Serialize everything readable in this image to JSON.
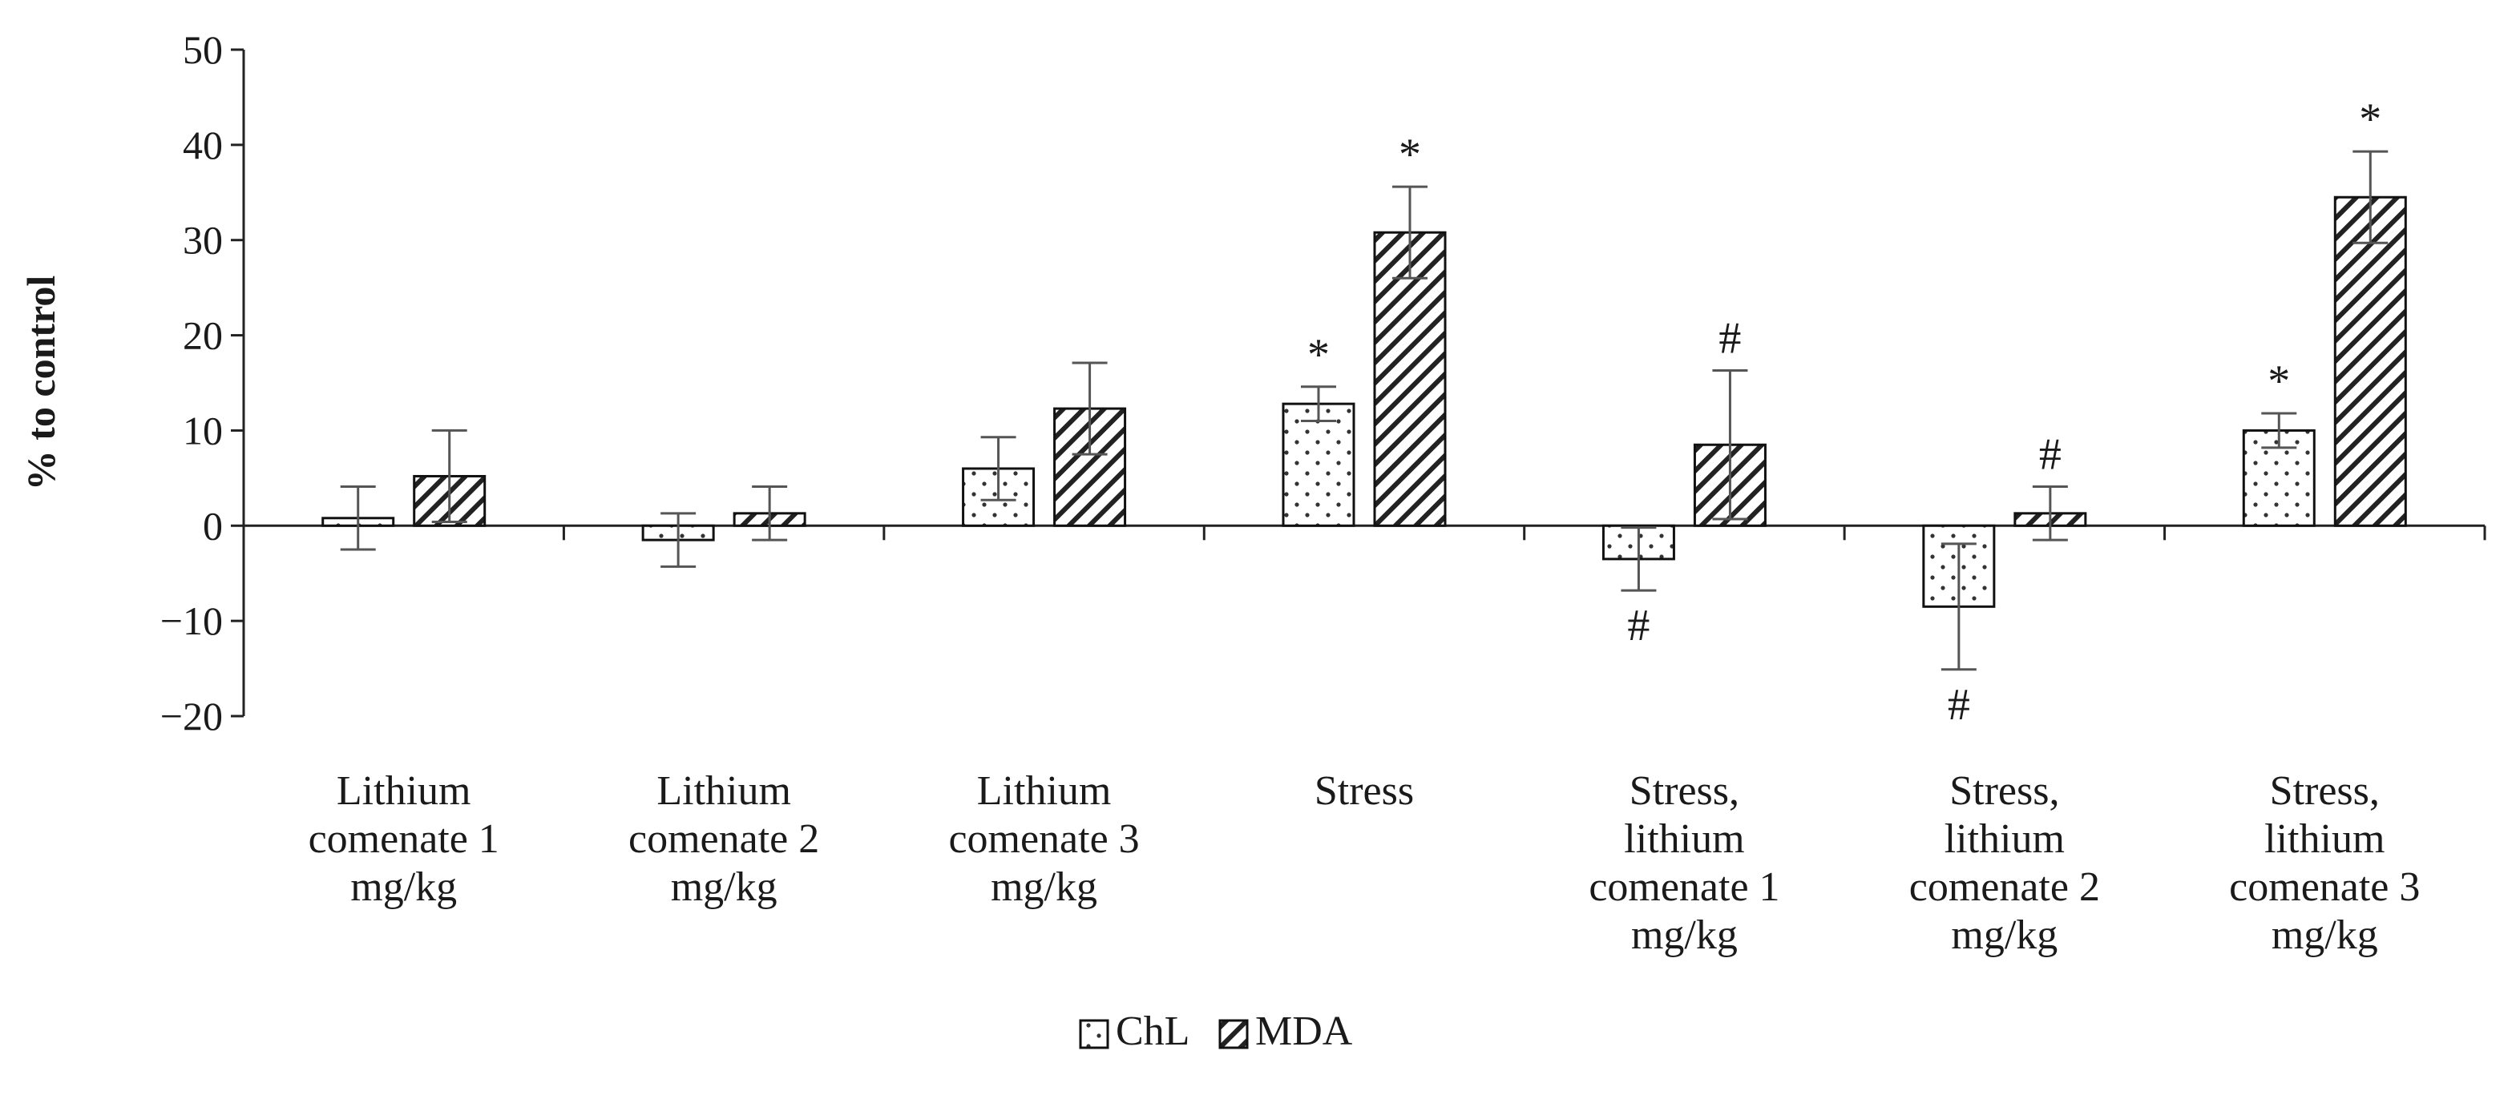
{
  "chart_data": {
    "type": "bar",
    "title": "",
    "xlabel": "",
    "ylabel": "% to control",
    "ylim": [
      -20,
      50
    ],
    "yticks": [
      50,
      40,
      30,
      20,
      10,
      0,
      -10,
      -20
    ],
    "ytick_labels": [
      "50",
      "40",
      "30",
      "20",
      "10",
      "0",
      "−10",
      "−20"
    ],
    "grid": false,
    "legend_position": "bottom-center",
    "categories": [
      [
        "Lithium",
        "comenate 1",
        "mg/kg"
      ],
      [
        "Lithium",
        "comenate 2",
        "mg/kg"
      ],
      [
        "Lithium",
        "comenate 3",
        "mg/kg"
      ],
      [
        "Stress"
      ],
      [
        "Stress,",
        "lithium",
        "comenate 1",
        "mg/kg"
      ],
      [
        "Stress,",
        "lithium",
        "comenate 2",
        "mg/kg"
      ],
      [
        "Stress,",
        "lithium",
        "comenate 3",
        "mg/kg"
      ]
    ],
    "series": [
      {
        "name": "ChL",
        "pattern": "dots",
        "values": [
          0.8,
          -1.5,
          6.0,
          12.8,
          -3.5,
          -8.5,
          10.0
        ],
        "errors": [
          3.3,
          2.8,
          3.3,
          1.8,
          3.3,
          6.6,
          1.8
        ],
        "annotations": [
          "",
          "",
          "",
          "*",
          "#",
          "#",
          "*"
        ]
      },
      {
        "name": "MDA",
        "pattern": "hatch",
        "values": [
          5.2,
          1.3,
          12.3,
          30.8,
          8.5,
          1.3,
          34.5
        ],
        "errors": [
          4.8,
          2.8,
          4.8,
          4.8,
          7.8,
          2.8,
          4.8
        ],
        "annotations": [
          "",
          "",
          "",
          "*",
          "#",
          "#",
          "*"
        ]
      }
    ]
  }
}
